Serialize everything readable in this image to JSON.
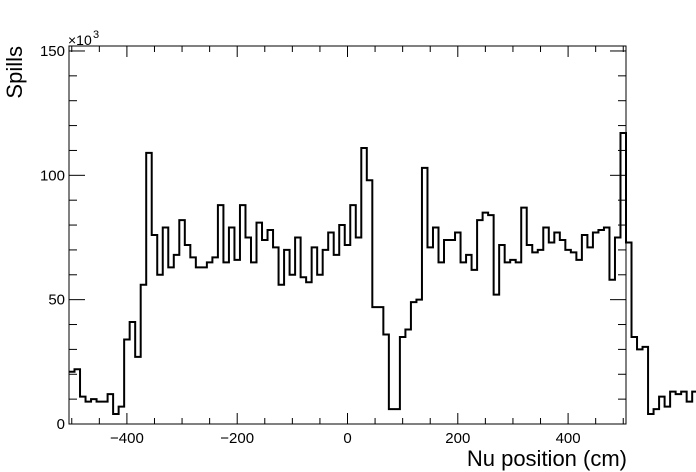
{
  "chart_data": {
    "type": "histogram",
    "xlabel": "Nu position (cm)",
    "ylabel": "Spills",
    "y_multiplier_label": "×10",
    "y_multiplier_exp": "3",
    "xlim": [
      -505,
      505
    ],
    "ylim": [
      0,
      152
    ],
    "bin_width": 10,
    "x_ticks": [
      -400,
      -200,
      0,
      200,
      400
    ],
    "x_tick_labels": [
      "−400",
      "−200",
      "0",
      "200",
      "400"
    ],
    "y_ticks": [
      0,
      50,
      100,
      150
    ],
    "y_tick_labels": [
      "0",
      "50",
      "100",
      "150"
    ],
    "grid": false,
    "line_color": "#000000",
    "bins_start": -505,
    "values": [
      21,
      22,
      11,
      9,
      10,
      9,
      9,
      12,
      4,
      7,
      34,
      41,
      27,
      56,
      109,
      76,
      60,
      79,
      63,
      68,
      82,
      72,
      67,
      63,
      63,
      65,
      67,
      88,
      65,
      79,
      66,
      88,
      75,
      65,
      81,
      74,
      78,
      71,
      56,
      70,
      60,
      75,
      59,
      57,
      71,
      60,
      70,
      77,
      68,
      80,
      72,
      88,
      75,
      111,
      98,
      47,
      47,
      36,
      6,
      6,
      35,
      38,
      49,
      50,
      103,
      71,
      79,
      65,
      74,
      74,
      77,
      65,
      68,
      62,
      82,
      85,
      84,
      52,
      72,
      65,
      66,
      65,
      87,
      72,
      69,
      70,
      79,
      73,
      77,
      74,
      70,
      69,
      66,
      76,
      71,
      77,
      78,
      79,
      58,
      75,
      117,
      73,
      35,
      30,
      31,
      4,
      6,
      11,
      7,
      13,
      12,
      13,
      9,
      13,
      31
    ]
  }
}
